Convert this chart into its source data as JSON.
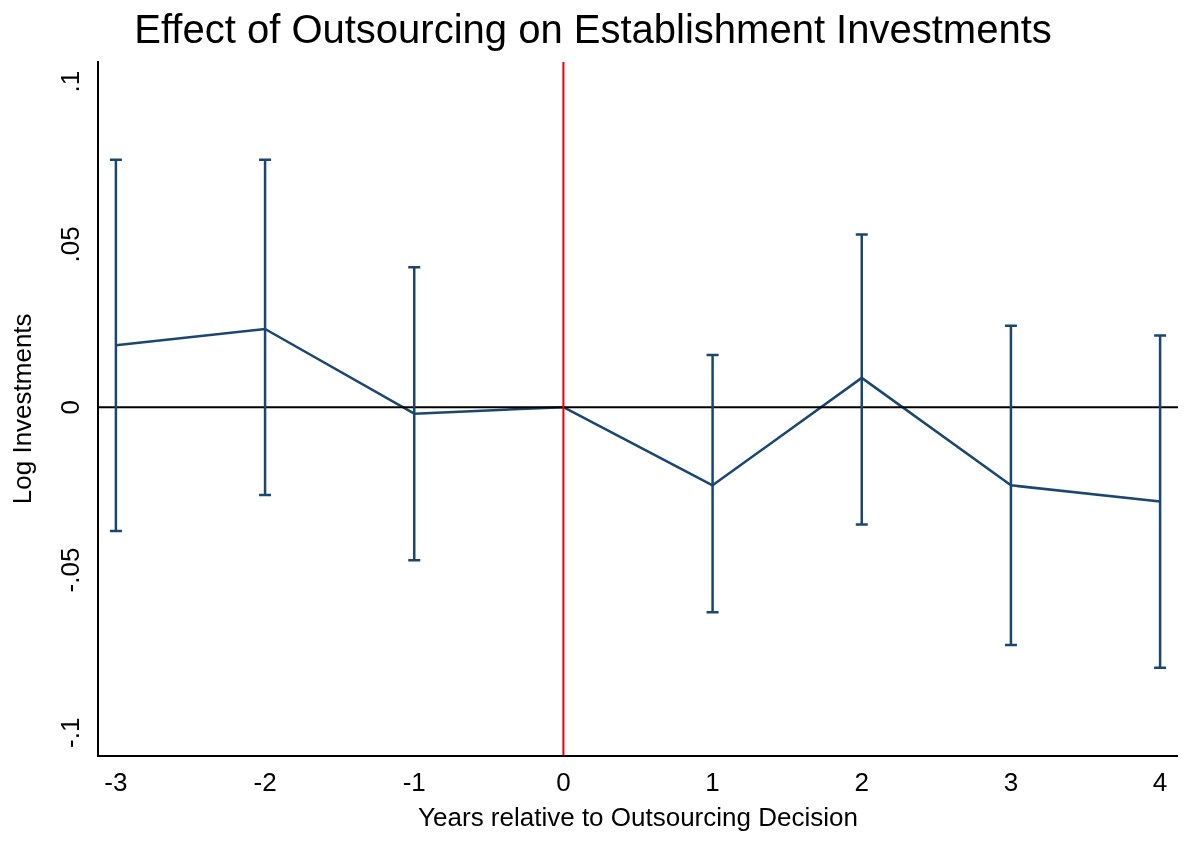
{
  "chart_data": {
    "type": "line",
    "title": "Effect of Outsourcing on Establishment Investments",
    "xlabel": "Years relative to Outsourcing Decision",
    "ylabel": "Log Investments",
    "x": [
      -3,
      -2,
      -1,
      0,
      1,
      2,
      3,
      4
    ],
    "series": [
      {
        "color": "#1a476f",
        "values": [
          0.019,
          0.024,
          -0.002,
          0,
          -0.024,
          0.009,
          -0.024,
          -0.029
        ],
        "errors": [
          [
            -0.038,
            0.076
          ],
          [
            -0.027,
            0.076
          ],
          [
            -0.047,
            0.043
          ],
          null,
          [
            -0.063,
            0.016
          ],
          [
            -0.036,
            0.053
          ],
          [
            -0.073,
            0.025
          ],
          [
            -0.08,
            0.022
          ]
        ]
      }
    ],
    "xlim": [
      -3.12,
      4.12
    ],
    "xticks": [
      -3,
      -2,
      -1,
      0,
      1,
      2,
      3,
      4
    ],
    "ylim": [
      -0.107,
      0.106
    ],
    "yticks": [
      {
        "value": -0.1,
        "label": "-.1"
      },
      {
        "value": -0.05,
        "label": "-.05"
      },
      {
        "value": 0,
        "label": "0"
      },
      {
        "value": 0.05,
        "label": ".05"
      },
      {
        "value": 0.1,
        "label": ".1"
      }
    ],
    "ref_lines": [
      {
        "axis": "y",
        "value": 0,
        "color": "#000000"
      },
      {
        "axis": "x",
        "value": 0,
        "color": "#e8000b"
      }
    ],
    "grid": false,
    "legend": false,
    "marker": "none",
    "line_style": "solid"
  }
}
